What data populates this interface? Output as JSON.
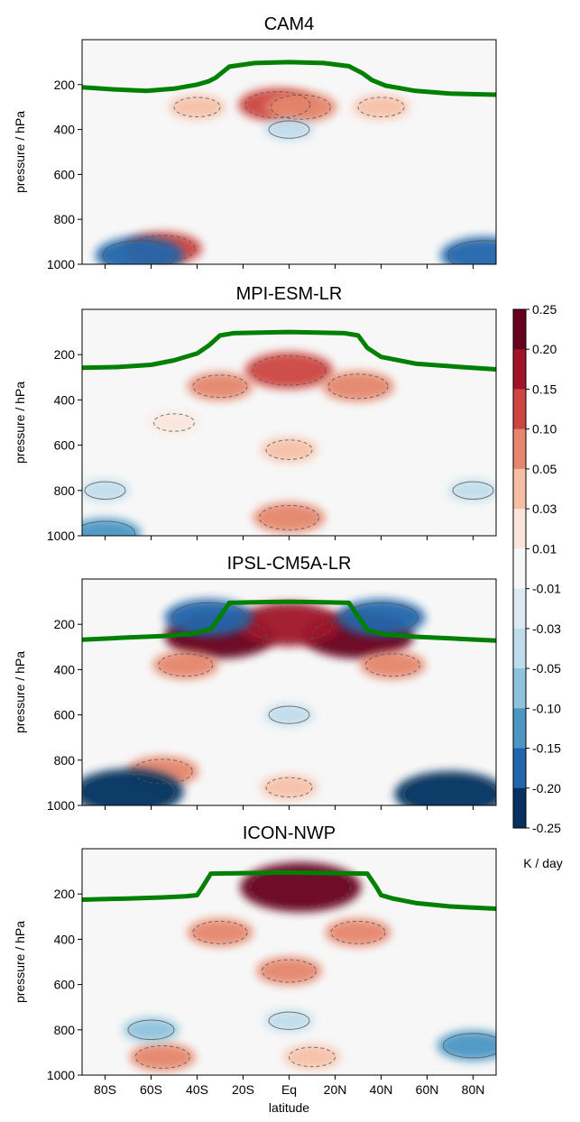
{
  "chart_data": [
    {
      "type": "heatmap",
      "title": "CAM4",
      "ylabel": "pressure / hPa",
      "xlabel": "",
      "y_ticks": [
        "200",
        "400",
        "600",
        "800",
        "1000"
      ],
      "y_tick_values": [
        200,
        400,
        600,
        800,
        1000
      ],
      "ylim": [
        1000,
        0
      ],
      "x_tick_values": [
        -80,
        -60,
        -40,
        -20,
        0,
        20,
        40,
        60,
        80
      ],
      "x_tick_labels_shown": false,
      "xlim": [
        -90,
        90
      ],
      "tropopause_line": {
        "color": "#008000",
        "lat": [
          -90,
          -75,
          -62,
          -50,
          -40,
          -35,
          -32,
          -26,
          -15,
          0,
          15,
          26,
          32,
          36,
          42,
          55,
          70,
          90
        ],
        "pressure_hPa": [
          212,
          222,
          228,
          218,
          200,
          185,
          170,
          120,
          104,
          100,
          104,
          118,
          150,
          180,
          205,
          228,
          240,
          245
        ]
      },
      "warm_anomalies": [
        {
          "lat": -5,
          "pressure": 290,
          "value": 0.12
        },
        {
          "lat": 5,
          "pressure": 300,
          "value": 0.1
        },
        {
          "lat": -40,
          "pressure": 300,
          "value": 0.05
        },
        {
          "lat": 40,
          "pressure": 300,
          "value": 0.05
        },
        {
          "lat": -55,
          "pressure": 930,
          "value": 0.12
        }
      ],
      "cool_anomalies": [
        {
          "lat": 0,
          "pressure": 400,
          "value": -0.03
        },
        {
          "lat": -65,
          "pressure": 960,
          "value": -0.15
        },
        {
          "lat": 85,
          "pressure": 960,
          "value": -0.15
        }
      ]
    },
    {
      "type": "heatmap",
      "title": "MPI-ESM-LR",
      "ylabel": "pressure / hPa",
      "xlabel": "",
      "y_ticks": [
        "200",
        "400",
        "600",
        "800",
        "1000"
      ],
      "y_tick_values": [
        200,
        400,
        600,
        800,
        1000
      ],
      "ylim": [
        1000,
        0
      ],
      "x_tick_values": [
        -80,
        -60,
        -40,
        -20,
        0,
        20,
        40,
        60,
        80
      ],
      "x_tick_labels_shown": false,
      "xlim": [
        -90,
        90
      ],
      "tropopause_line": {
        "color": "#008000",
        "lat": [
          -90,
          -75,
          -60,
          -50,
          -40,
          -35,
          -30,
          -24,
          -10,
          0,
          10,
          24,
          30,
          34,
          40,
          55,
          75,
          90
        ],
        "pressure_hPa": [
          258,
          255,
          245,
          225,
          195,
          160,
          115,
          105,
          102,
          100,
          102,
          105,
          115,
          170,
          210,
          240,
          255,
          265
        ]
      },
      "warm_anomalies": [
        {
          "lat": 0,
          "pressure": 270,
          "value": 0.15
        },
        {
          "lat": -30,
          "pressure": 340,
          "value": 0.08
        },
        {
          "lat": 30,
          "pressure": 340,
          "value": 0.1
        },
        {
          "lat": -50,
          "pressure": 500,
          "value": 0.03
        },
        {
          "lat": 0,
          "pressure": 620,
          "value": 0.05
        },
        {
          "lat": 0,
          "pressure": 920,
          "value": 0.1
        }
      ],
      "cool_anomalies": [
        {
          "lat": -80,
          "pressure": 800,
          "value": -0.03
        },
        {
          "lat": 80,
          "pressure": 800,
          "value": -0.03
        },
        {
          "lat": -80,
          "pressure": 990,
          "value": -0.1
        }
      ]
    },
    {
      "type": "heatmap",
      "title": "IPSL-CM5A-LR",
      "ylabel": "pressure / hPa",
      "xlabel": "",
      "y_ticks": [
        "200",
        "400",
        "600",
        "800",
        "1000"
      ],
      "y_tick_values": [
        200,
        400,
        600,
        800,
        1000
      ],
      "ylim": [
        1000,
        0
      ],
      "x_tick_values": [
        -80,
        -60,
        -40,
        -20,
        0,
        20,
        40,
        60,
        80
      ],
      "x_tick_labels_shown": false,
      "xlim": [
        -90,
        90
      ],
      "tropopause_line": {
        "color": "#008000",
        "lat": [
          -90,
          -70,
          -55,
          -42,
          -34,
          -31,
          -26,
          -18,
          0,
          18,
          26,
          31,
          34,
          42,
          55,
          70,
          90
        ],
        "pressure_hPa": [
          268,
          258,
          252,
          242,
          220,
          180,
          105,
          103,
          100,
          103,
          105,
          180,
          225,
          245,
          255,
          262,
          272
        ]
      },
      "warm_anomalies": [
        {
          "lat": -30,
          "pressure": 250,
          "value": 0.22
        },
        {
          "lat": 30,
          "pressure": 250,
          "value": 0.22
        },
        {
          "lat": 0,
          "pressure": 200,
          "value": 0.2
        },
        {
          "lat": -45,
          "pressure": 380,
          "value": 0.08
        },
        {
          "lat": 45,
          "pressure": 380,
          "value": 0.08
        },
        {
          "lat": -55,
          "pressure": 850,
          "value": 0.1
        },
        {
          "lat": 0,
          "pressure": 920,
          "value": 0.05
        }
      ],
      "cool_anomalies": [
        {
          "lat": -35,
          "pressure": 170,
          "value": -0.15
        },
        {
          "lat": 40,
          "pressure": 170,
          "value": -0.15
        },
        {
          "lat": -70,
          "pressure": 940,
          "value": -0.22
        },
        {
          "lat": 70,
          "pressure": 950,
          "value": -0.22
        },
        {
          "lat": 0,
          "pressure": 600,
          "value": -0.03
        }
      ]
    },
    {
      "type": "heatmap",
      "title": "ICON-NWP",
      "ylabel": "pressure / hPa",
      "xlabel": "latitude",
      "y_ticks": [
        "200",
        "400",
        "600",
        "800",
        "1000"
      ],
      "y_tick_values": [
        200,
        400,
        600,
        800,
        1000
      ],
      "ylim": [
        1000,
        0
      ],
      "x_tick_values": [
        -80,
        -60,
        -40,
        -20,
        0,
        20,
        40,
        60,
        80
      ],
      "x_ticks": [
        "80S",
        "60S",
        "40S",
        "20S",
        "Eq",
        "20N",
        "40N",
        "60N",
        "80N"
      ],
      "x_tick_labels_shown": true,
      "xlim": [
        -90,
        90
      ],
      "tropopause_line": {
        "color": "#008000",
        "lat": [
          -90,
          -70,
          -55,
          -45,
          -40,
          -38,
          -34,
          -20,
          0,
          20,
          34,
          38,
          40,
          45,
          55,
          70,
          90
        ],
        "pressure_hPa": [
          225,
          220,
          215,
          210,
          205,
          175,
          110,
          108,
          105,
          108,
          110,
          170,
          205,
          220,
          240,
          255,
          265
        ]
      },
      "warm_anomalies": [
        {
          "lat": 5,
          "pressure": 170,
          "value": 0.25
        },
        {
          "lat": -30,
          "pressure": 370,
          "value": 0.08
        },
        {
          "lat": 30,
          "pressure": 370,
          "value": 0.08
        },
        {
          "lat": 0,
          "pressure": 540,
          "value": 0.08
        },
        {
          "lat": -55,
          "pressure": 920,
          "value": 0.08
        },
        {
          "lat": 10,
          "pressure": 920,
          "value": 0.05
        }
      ],
      "cool_anomalies": [
        {
          "lat": -60,
          "pressure": 800,
          "value": -0.05
        },
        {
          "lat": 80,
          "pressure": 870,
          "value": -0.1
        },
        {
          "lat": 0,
          "pressure": 760,
          "value": -0.03
        }
      ]
    }
  ],
  "colorbar": {
    "label": "K / day",
    "tick_labels": [
      "0.25",
      "0.20",
      "0.15",
      "0.10",
      "0.05",
      "0.03",
      "0.01",
      "-0.01",
      "-0.03",
      "-0.05",
      "-0.10",
      "-0.15",
      "-0.20",
      "-0.25"
    ],
    "colors": [
      "#67001f",
      "#a01329",
      "#cc4541",
      "#e6866c",
      "#f7c0a6",
      "#fae5da",
      "#f7f7f7",
      "#ddeaf2",
      "#bfdceb",
      "#8fc3dd",
      "#4c97c5",
      "#2166ac",
      "#053061"
    ]
  },
  "colors": {
    "background_field": "#f7f7f7",
    "contour_solid": "#555555",
    "contour_dashed": "#555555",
    "tropopause": "#008000"
  }
}
